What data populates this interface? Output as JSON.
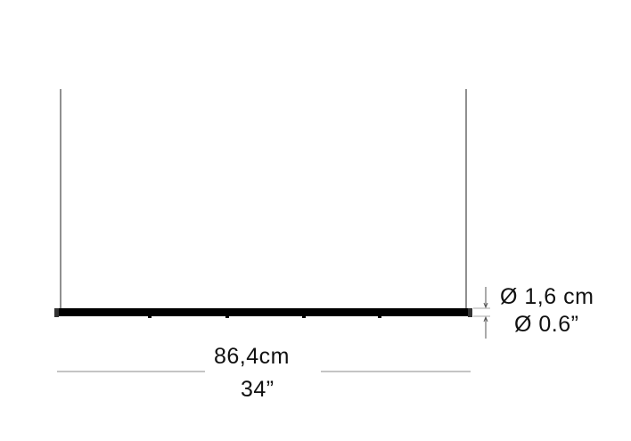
{
  "dimensions": {
    "width_cm": "86,4cm",
    "width_in": "34”",
    "diameter_cm": "Ø 1,6 cm",
    "diameter_in": "Ø 0.6”"
  },
  "colors": {
    "lamp": "#000000",
    "cable": "#222222",
    "dimension_line": "#888888",
    "text": "#111111"
  }
}
